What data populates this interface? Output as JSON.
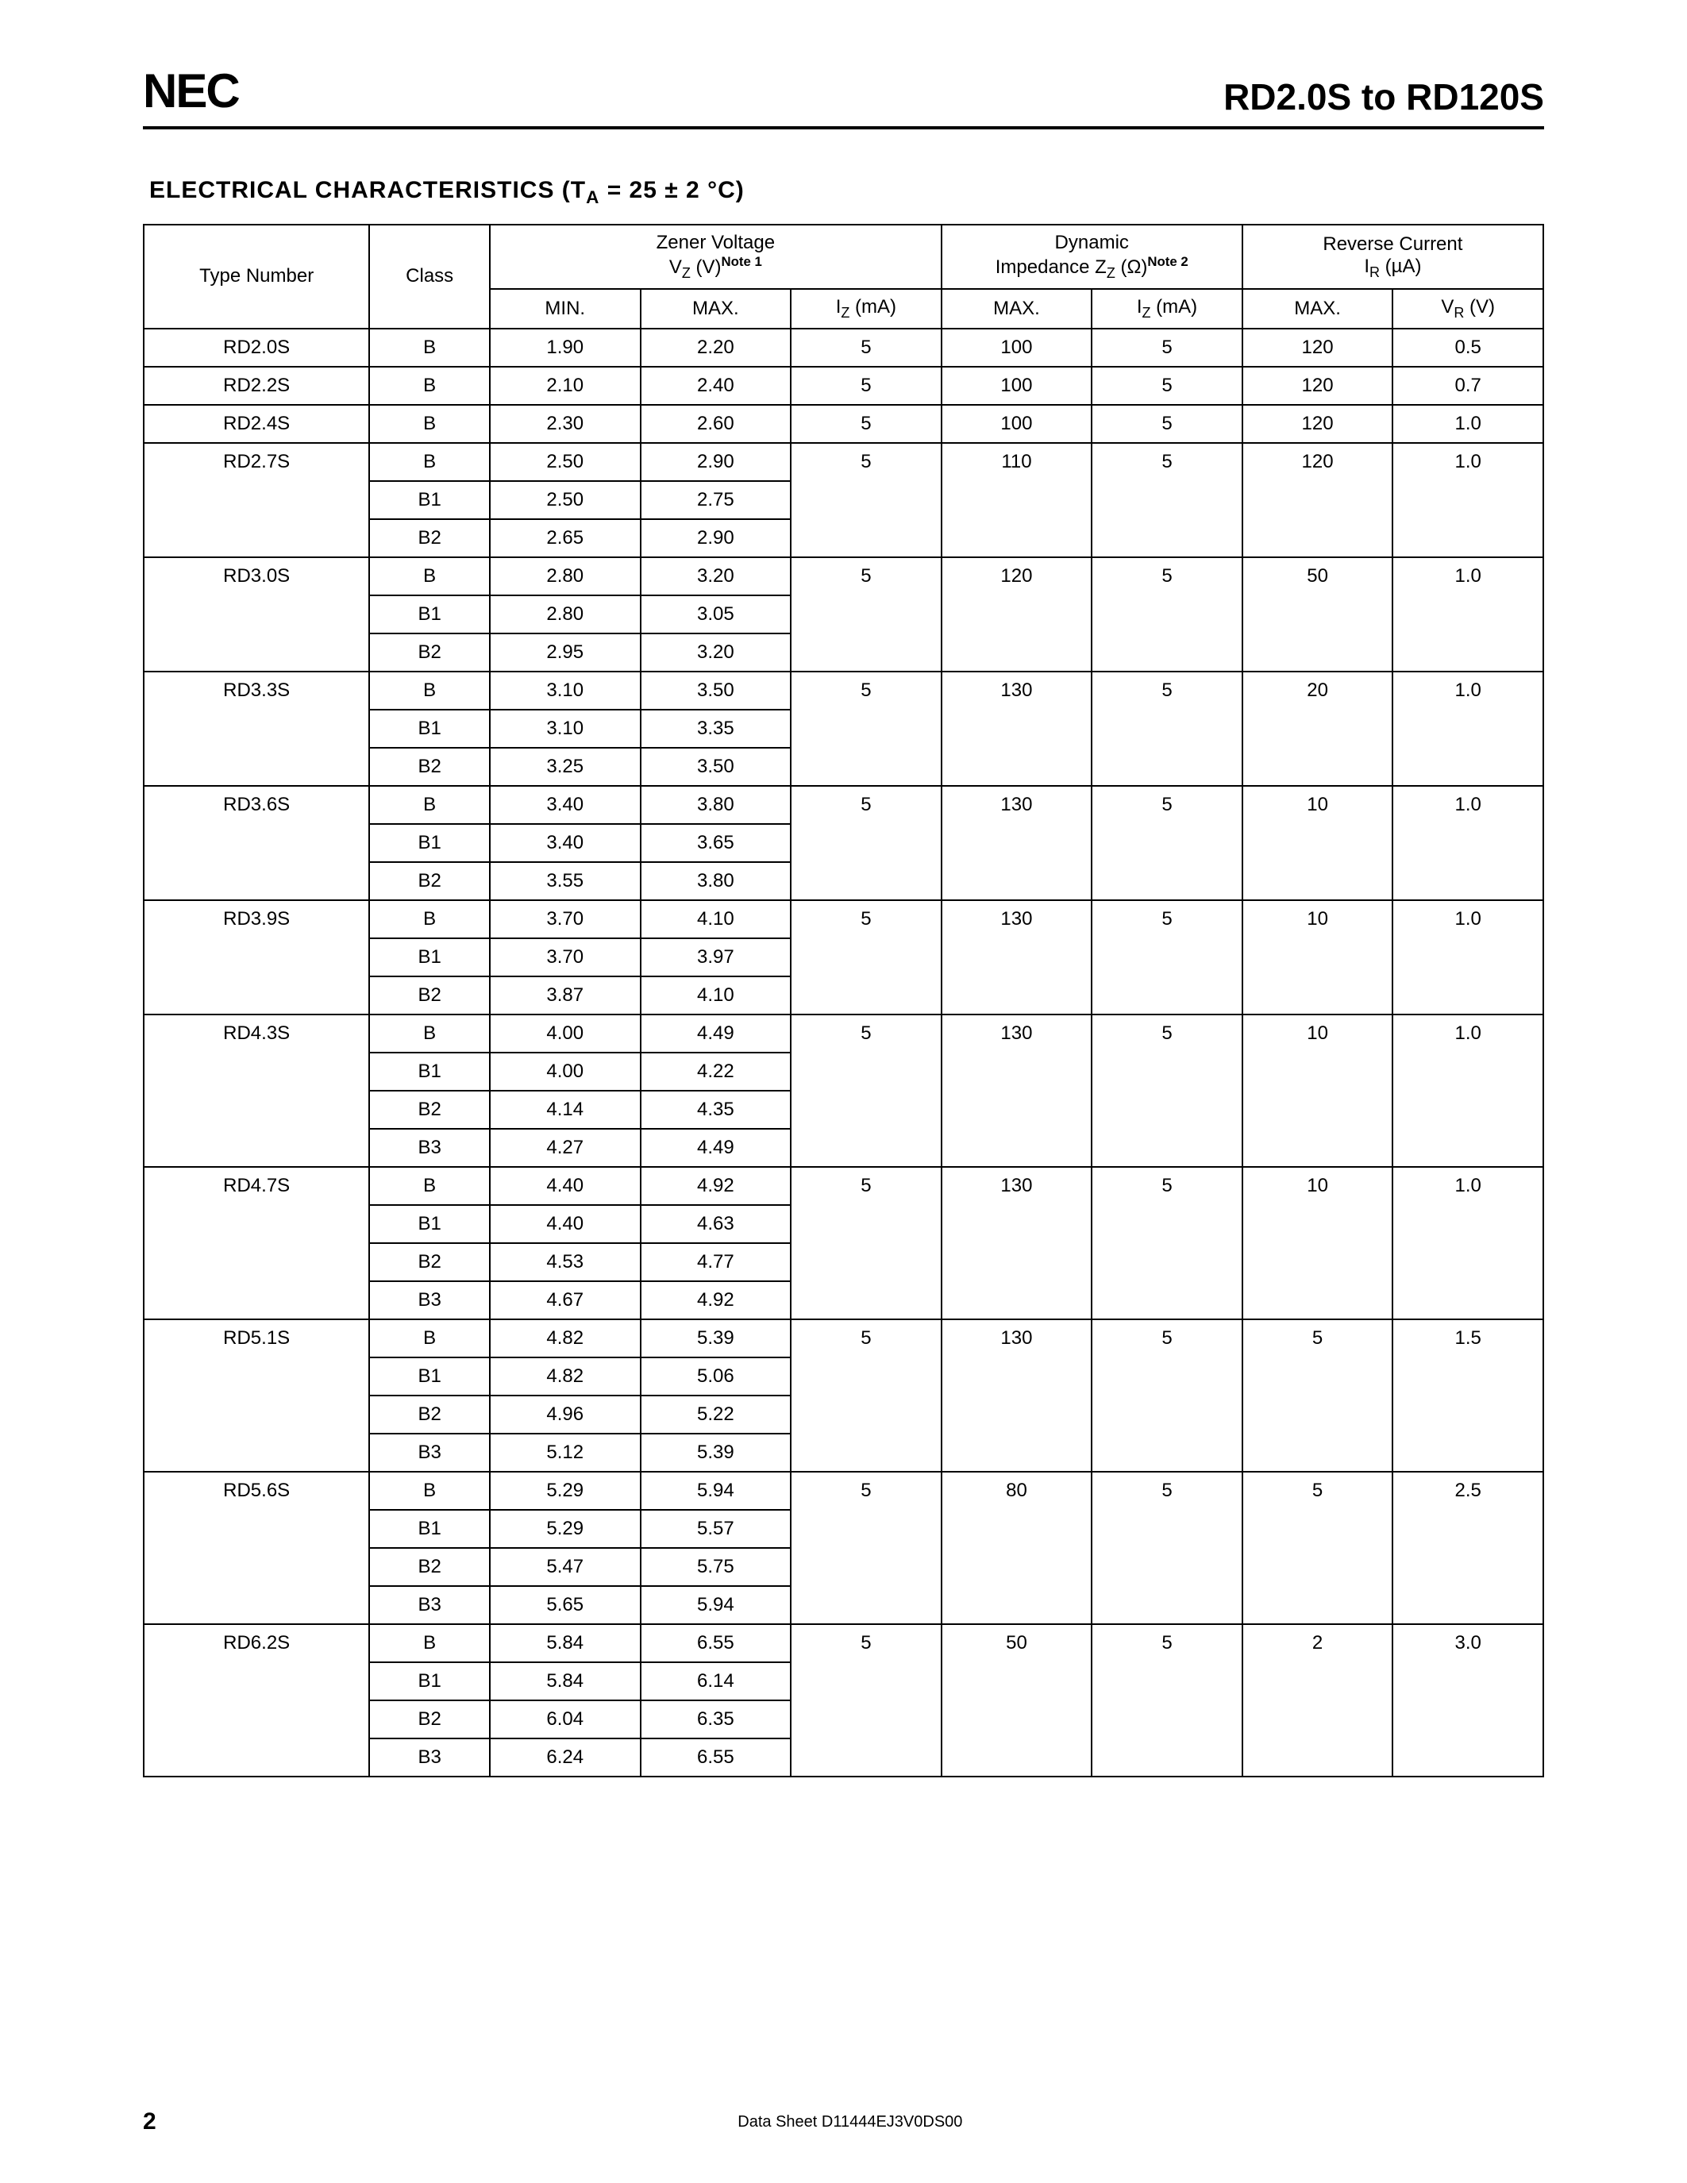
{
  "header": {
    "logo": "NEC",
    "doc_title": "RD2.0S to RD120S"
  },
  "section_title_prefix": "ELECTRICAL  CHARACTERISTICS  (T",
  "section_title_sub": "A",
  "section_title_rest": " = 25 ± 2 °C)",
  "columns": {
    "type_number": "Type Number",
    "class": "Class",
    "zener_group_l1": "Zener Voltage",
    "zener_group_l2a": "V",
    "zener_group_l2a_sub": "Z",
    "zener_group_l2b": " (V)",
    "zener_note": "Note 1",
    "dyn_group_l1": "Dynamic",
    "dyn_group_l2a": "Impedance Z",
    "dyn_group_l2a_sub": "Z",
    "dyn_group_l2b": " (Ω)",
    "dyn_note": "Note 2",
    "rev_group_l1": "Reverse Current",
    "rev_group_l2a": "I",
    "rev_group_l2a_sub": "R",
    "rev_group_l2b": " (µA)",
    "min": "MIN.",
    "max": "MAX.",
    "iz": "I",
    "iz_sub": "Z",
    "iz_unit": " (mA)",
    "zz_max": "MAX.",
    "zz_iz": "I",
    "zz_iz_sub": "Z",
    "zz_iz_unit": " (mA)",
    "ir_max": "MAX.",
    "vr": "V",
    "vr_sub": "R",
    "vr_unit": " (V)"
  },
  "parts": [
    {
      "type": "RD2.0S",
      "rows": [
        {
          "class": "B",
          "min": "1.90",
          "max": "2.20",
          "iz": "5",
          "zzmax": "100",
          "zziz": "5",
          "irmax": "120",
          "vr": "0.5"
        }
      ]
    },
    {
      "type": "RD2.2S",
      "rows": [
        {
          "class": "B",
          "min": "2.10",
          "max": "2.40",
          "iz": "5",
          "zzmax": "100",
          "zziz": "5",
          "irmax": "120",
          "vr": "0.7"
        }
      ]
    },
    {
      "type": "RD2.4S",
      "rows": [
        {
          "class": "B",
          "min": "2.30",
          "max": "2.60",
          "iz": "5",
          "zzmax": "100",
          "zziz": "5",
          "irmax": "120",
          "vr": "1.0"
        }
      ]
    },
    {
      "type": "RD2.7S",
      "rows": [
        {
          "class": "B",
          "min": "2.50",
          "max": "2.90",
          "iz": "5",
          "zzmax": "110",
          "zziz": "5",
          "irmax": "120",
          "vr": "1.0"
        },
        {
          "class": "B1",
          "min": "2.50",
          "max": "2.75"
        },
        {
          "class": "B2",
          "min": "2.65",
          "max": "2.90"
        }
      ]
    },
    {
      "type": "RD3.0S",
      "rows": [
        {
          "class": "B",
          "min": "2.80",
          "max": "3.20",
          "iz": "5",
          "zzmax": "120",
          "zziz": "5",
          "irmax": "50",
          "vr": "1.0"
        },
        {
          "class": "B1",
          "min": "2.80",
          "max": "3.05"
        },
        {
          "class": "B2",
          "min": "2.95",
          "max": "3.20"
        }
      ]
    },
    {
      "type": "RD3.3S",
      "rows": [
        {
          "class": "B",
          "min": "3.10",
          "max": "3.50",
          "iz": "5",
          "zzmax": "130",
          "zziz": "5",
          "irmax": "20",
          "vr": "1.0"
        },
        {
          "class": "B1",
          "min": "3.10",
          "max": "3.35"
        },
        {
          "class": "B2",
          "min": "3.25",
          "max": "3.50"
        }
      ]
    },
    {
      "type": "RD3.6S",
      "rows": [
        {
          "class": "B",
          "min": "3.40",
          "max": "3.80",
          "iz": "5",
          "zzmax": "130",
          "zziz": "5",
          "irmax": "10",
          "vr": "1.0"
        },
        {
          "class": "B1",
          "min": "3.40",
          "max": "3.65"
        },
        {
          "class": "B2",
          "min": "3.55",
          "max": "3.80"
        }
      ]
    },
    {
      "type": "RD3.9S",
      "rows": [
        {
          "class": "B",
          "min": "3.70",
          "max": "4.10",
          "iz": "5",
          "zzmax": "130",
          "zziz": "5",
          "irmax": "10",
          "vr": "1.0"
        },
        {
          "class": "B1",
          "min": "3.70",
          "max": "3.97"
        },
        {
          "class": "B2",
          "min": "3.87",
          "max": "4.10"
        }
      ]
    },
    {
      "type": "RD4.3S",
      "rows": [
        {
          "class": "B",
          "min": "4.00",
          "max": "4.49",
          "iz": "5",
          "zzmax": "130",
          "zziz": "5",
          "irmax": "10",
          "vr": "1.0"
        },
        {
          "class": "B1",
          "min": "4.00",
          "max": "4.22"
        },
        {
          "class": "B2",
          "min": "4.14",
          "max": "4.35"
        },
        {
          "class": "B3",
          "min": "4.27",
          "max": "4.49"
        }
      ]
    },
    {
      "type": "RD4.7S",
      "rows": [
        {
          "class": "B",
          "min": "4.40",
          "max": "4.92",
          "iz": "5",
          "zzmax": "130",
          "zziz": "5",
          "irmax": "10",
          "vr": "1.0"
        },
        {
          "class": "B1",
          "min": "4.40",
          "max": "4.63"
        },
        {
          "class": "B2",
          "min": "4.53",
          "max": "4.77"
        },
        {
          "class": "B3",
          "min": "4.67",
          "max": "4.92"
        }
      ]
    },
    {
      "type": "RD5.1S",
      "rows": [
        {
          "class": "B",
          "min": "4.82",
          "max": "5.39",
          "iz": "5",
          "zzmax": "130",
          "zziz": "5",
          "irmax": "5",
          "vr": "1.5"
        },
        {
          "class": "B1",
          "min": "4.82",
          "max": "5.06"
        },
        {
          "class": "B2",
          "min": "4.96",
          "max": "5.22"
        },
        {
          "class": "B3",
          "min": "5.12",
          "max": "5.39"
        }
      ]
    },
    {
      "type": "RD5.6S",
      "rows": [
        {
          "class": "B",
          "min": "5.29",
          "max": "5.94",
          "iz": "5",
          "zzmax": "80",
          "zziz": "5",
          "irmax": "5",
          "vr": "2.5"
        },
        {
          "class": "B1",
          "min": "5.29",
          "max": "5.57"
        },
        {
          "class": "B2",
          "min": "5.47",
          "max": "5.75"
        },
        {
          "class": "B3",
          "min": "5.65",
          "max": "5.94"
        }
      ]
    },
    {
      "type": "RD6.2S",
      "rows": [
        {
          "class": "B",
          "min": "5.84",
          "max": "6.55",
          "iz": "5",
          "zzmax": "50",
          "zziz": "5",
          "irmax": "2",
          "vr": "3.0"
        },
        {
          "class": "B1",
          "min": "5.84",
          "max": "6.14"
        },
        {
          "class": "B2",
          "min": "6.04",
          "max": "6.35"
        },
        {
          "class": "B3",
          "min": "6.24",
          "max": "6.55"
        }
      ]
    }
  ],
  "footer": {
    "page": "2",
    "text": "Data Sheet  D11444EJ3V0DS00"
  }
}
